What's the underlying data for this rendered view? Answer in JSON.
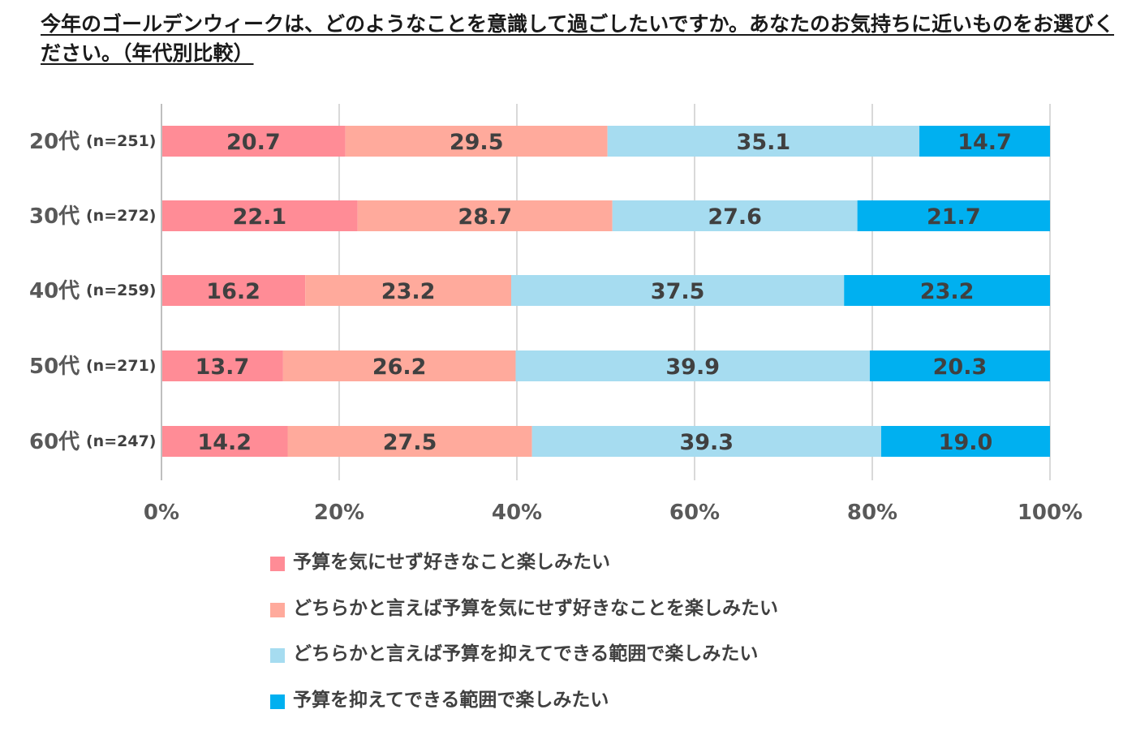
{
  "title": "今年のゴールデンウィークは、どのようなことを意識して過ごしたいですか。あなたのお気持ちに近いものをお選びください。（年代別比較）",
  "chart_data": {
    "type": "bar",
    "orientation": "horizontal",
    "stacked": true,
    "percent_stacked": true,
    "categories": [
      "20代",
      "30代",
      "40代",
      "50代",
      "60代"
    ],
    "category_n": [
      "(n=251)",
      "(n=272)",
      "(n=259)",
      "(n=271)",
      "(n=247)"
    ],
    "series": [
      {
        "name": "予算を気にせず好きなこと楽しみたい",
        "color": "#ff8c96",
        "values": [
          20.7,
          22.1,
          16.2,
          13.7,
          14.2
        ]
      },
      {
        "name": "どちらかと言えば予算を気にせず好きなことを楽しみたい",
        "color": "#ffaa9c",
        "values": [
          29.5,
          28.7,
          23.2,
          26.2,
          27.5
        ]
      },
      {
        "name": "どちらかと言えば予算を抑えてできる範囲で楽しみたい",
        "color": "#a6dcf0",
        "values": [
          35.1,
          27.6,
          37.5,
          39.9,
          39.3
        ]
      },
      {
        "name": "予算を抑えてできる範囲で楽しみたい",
        "color": "#00b0f0",
        "values": [
          14.7,
          21.7,
          23.2,
          20.3,
          19.0
        ]
      }
    ],
    "value_labels": [
      [
        "20.7",
        "29.5",
        "35.1",
        "14.7"
      ],
      [
        "22.1",
        "28.7",
        "27.6",
        "21.7"
      ],
      [
        "16.2",
        "23.2",
        "37.5",
        "23.2"
      ],
      [
        "13.7",
        "26.2",
        "39.9",
        "20.3"
      ],
      [
        "14.2",
        "27.5",
        "39.3",
        "19.0"
      ]
    ],
    "xticks": [
      "0%",
      "20%",
      "40%",
      "60%",
      "80%",
      "100%"
    ],
    "xlim": [
      0,
      100
    ],
    "grid": true,
    "legend_position": "bottom"
  }
}
